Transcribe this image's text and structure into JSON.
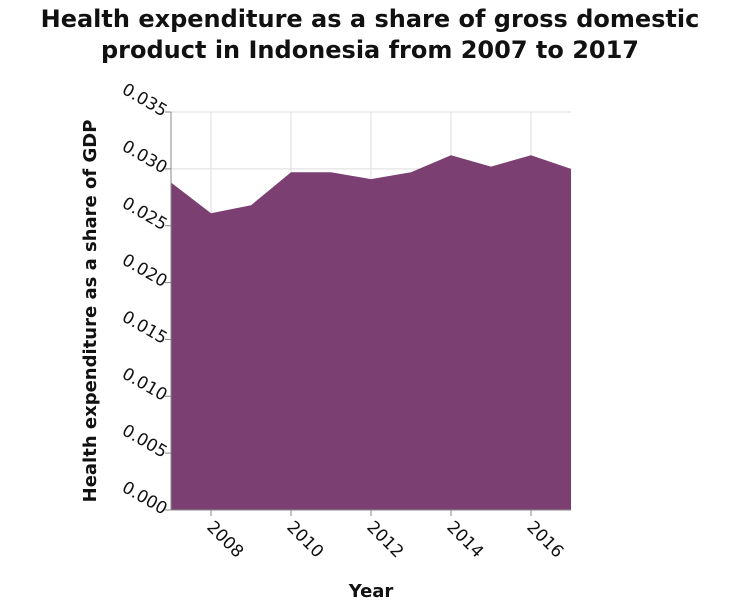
{
  "chart_data": {
    "type": "area",
    "title_lines": [
      "Health expenditure as a share of gross domestic",
      "product in Indonesia from 2007 to 2017"
    ],
    "xlabel": "Year",
    "ylabel": "Health expenditure as a share of GDP",
    "x": [
      2007,
      2008,
      2009,
      2010,
      2011,
      2012,
      2013,
      2014,
      2015,
      2016,
      2017
    ],
    "values": [
      0.0288,
      0.0261,
      0.0268,
      0.0297,
      0.0297,
      0.0291,
      0.0297,
      0.0312,
      0.0302,
      0.0312,
      0.03
    ],
    "xlim": [
      2007,
      2017
    ],
    "ylim": [
      0,
      0.035
    ],
    "x_ticks": [
      "2008",
      "2010",
      "2012",
      "2014",
      "2016"
    ],
    "y_ticks": [
      "0.000",
      "0.005",
      "0.010",
      "0.015",
      "0.020",
      "0.025",
      "0.030",
      "0.035"
    ],
    "grid": true,
    "colors": {
      "fill": "#7b3f72",
      "grid": "#dddddd",
      "axis": "#888888"
    }
  }
}
